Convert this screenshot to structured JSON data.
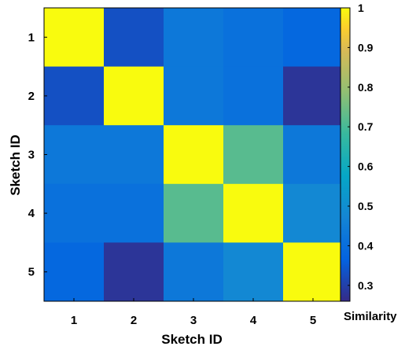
{
  "chart_data": {
    "type": "heatmap",
    "xlabel": "Sketch ID",
    "ylabel": "Sketch ID",
    "x_categories": [
      "1",
      "2",
      "3",
      "4",
      "5"
    ],
    "y_categories": [
      "1",
      "2",
      "3",
      "4",
      "5"
    ],
    "values": [
      [
        1.0,
        0.33,
        0.43,
        0.41,
        0.38
      ],
      [
        0.33,
        1.0,
        0.43,
        0.41,
        0.28
      ],
      [
        0.43,
        0.43,
        1.0,
        0.72,
        0.43
      ],
      [
        0.41,
        0.41,
        0.72,
        1.0,
        0.48
      ],
      [
        0.38,
        0.28,
        0.43,
        0.48,
        1.0
      ]
    ],
    "colorbar": {
      "label": "Similarity",
      "range": [
        0.26,
        1.0
      ],
      "ticks": [
        "1",
        "0.9",
        "0.8",
        "0.7",
        "0.6",
        "0.5",
        "0.4",
        "0.3"
      ],
      "tick_values": [
        1.0,
        0.9,
        0.8,
        0.7,
        0.6,
        0.5,
        0.4,
        0.3
      ],
      "colormap": "parula"
    },
    "grid": false
  }
}
